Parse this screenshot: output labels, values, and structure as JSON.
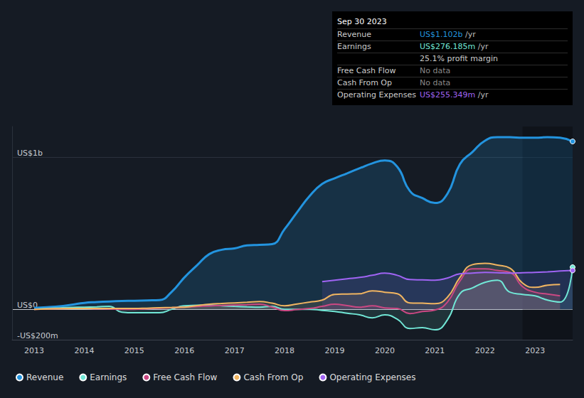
{
  "chart_data": {
    "type": "line",
    "x": [
      2013,
      2013.25,
      2013.5,
      2013.75,
      2014,
      2014.25,
      2014.5,
      2014.75,
      2015,
      2015.25,
      2015.5,
      2015.75,
      2016,
      2016.25,
      2016.5,
      2016.75,
      2017,
      2017.25,
      2017.5,
      2017.75,
      2018,
      2018.25,
      2018.5,
      2018.75,
      2019,
      2019.25,
      2019.5,
      2019.75,
      2020,
      2020.25,
      2020.5,
      2020.75,
      2021,
      2021.25,
      2021.5,
      2021.75,
      2022,
      2022.25,
      2022.5,
      2022.75,
      2023,
      2023.25,
      2023.5,
      2023.75
    ],
    "series": [
      {
        "name": "Revenue",
        "color": "#2394df",
        "values": [
          9,
          14,
          19,
          30,
          42,
          47,
          51,
          54,
          56,
          58,
          60,
          116,
          209,
          288,
          363,
          391,
          400,
          419,
          423,
          428,
          526,
          637,
          744,
          823,
          860,
          893,
          926,
          958,
          977,
          935,
          777,
          730,
          698,
          758,
          953,
          1033,
          1107,
          1130,
          1130,
          1126,
          1126,
          1130,
          1126,
          1102
        ]
      },
      {
        "name": "Earnings",
        "color": "#71e7d6",
        "values": [
          0,
          5,
          9,
          12,
          14,
          16,
          19,
          -19,
          -23,
          -23,
          -23,
          0,
          23,
          26,
          28,
          23,
          19,
          16,
          14,
          19,
          0,
          0,
          0,
          -7,
          -14,
          -26,
          -37,
          -56,
          -37,
          -65,
          -126,
          -121,
          -135,
          -70,
          102,
          140,
          177,
          191,
          112,
          98,
          88,
          60,
          47,
          276
        ]
      },
      {
        "name": "Free Cash Flow",
        "color": "#cb4883",
        "values": [
          0,
          2,
          4,
          5,
          5,
          3,
          2,
          0,
          0,
          3,
          7,
          10,
          14,
          18,
          22,
          25,
          28,
          30,
          33,
          15,
          -9,
          -2,
          5,
          19,
          33,
          24,
          14,
          23,
          9,
          5,
          -28,
          -15,
          -5,
          47,
          186,
          265,
          265,
          255,
          242,
          149,
          112,
          100,
          88,
          null
        ]
      },
      {
        "name": "Cash From Op",
        "color": "#f1b561",
        "values": [
          0,
          2,
          4,
          5,
          5,
          5,
          5,
          5,
          5,
          7,
          10,
          12,
          14,
          24,
          33,
          38,
          42,
          46,
          51,
          40,
          23,
          35,
          47,
          60,
          98,
          100,
          102,
          121,
          112,
          102,
          42,
          40,
          37,
          79,
          209,
          293,
          302,
          290,
          270,
          172,
          144,
          158,
          163,
          null
        ]
      },
      {
        "name": "Operating Expenses",
        "color": "#a064f4",
        "values": [
          null,
          null,
          null,
          null,
          null,
          null,
          null,
          null,
          null,
          null,
          null,
          null,
          null,
          null,
          null,
          null,
          null,
          null,
          null,
          null,
          null,
          null,
          null,
          181,
          191,
          200,
          209,
          223,
          237,
          223,
          195,
          193,
          191,
          205,
          233,
          238,
          242,
          240,
          237,
          240,
          242,
          246,
          251,
          255
        ]
      }
    ],
    "xlim": [
      2012.56,
      2023.75
    ],
    "xticks": [
      2013,
      2014,
      2015,
      2016,
      2017,
      2018,
      2019,
      2020,
      2021,
      2022,
      2023
    ],
    "ylim": [
      -200,
      1200
    ],
    "yticks": [
      {
        "value": -200,
        "label": "-US$200m"
      },
      {
        "value": 0,
        "label": "US$0"
      },
      {
        "value": 1000,
        "label": "US$1b"
      }
    ],
    "grid": true,
    "legend": "bottom-left",
    "highlight_x": [
      2022.75,
      2023.75
    ],
    "annotations": {
      "header": "Sep 30 2023",
      "rows": [
        {
          "label": "Revenue",
          "value": "US$1.102b",
          "unit": "/yr"
        },
        {
          "label": "Earnings",
          "value": "US$276.185m",
          "unit": "/yr"
        },
        {
          "value": "25.1% profit margin"
        },
        {
          "label": "Free Cash Flow",
          "value": "No data"
        },
        {
          "label": "Cash From Op",
          "value": "No data"
        },
        {
          "label": "Operating Expenses",
          "value": "US$255.349m",
          "unit": "/yr"
        }
      ]
    }
  }
}
